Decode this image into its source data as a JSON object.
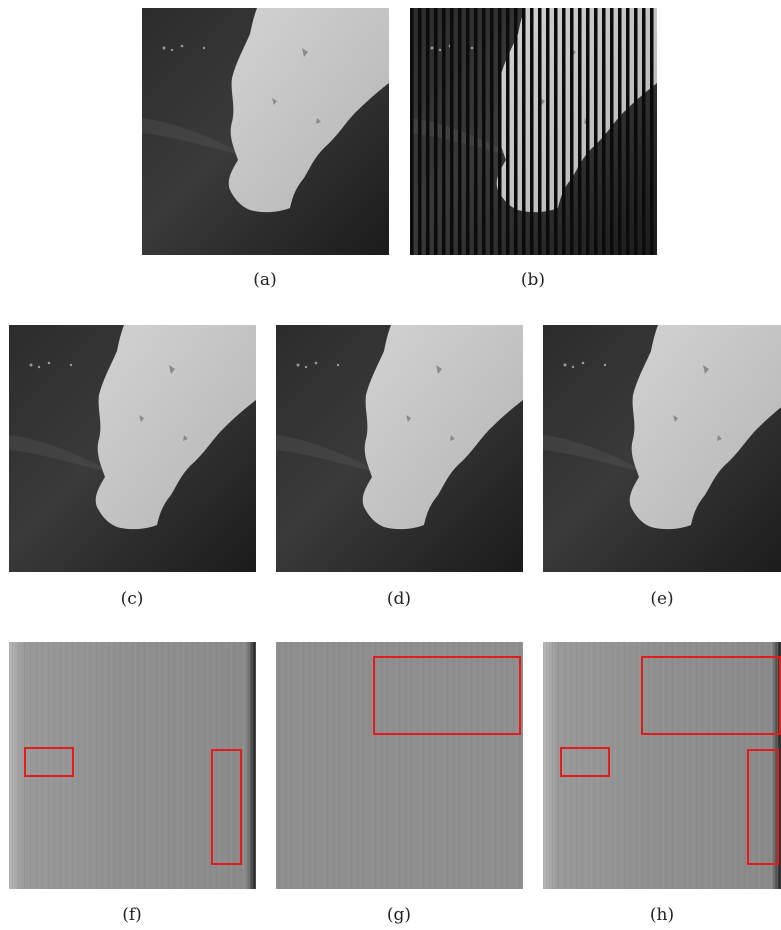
{
  "captions": {
    "a": "(a)",
    "b": "(b)",
    "c": "(c)",
    "d": "(d)",
    "e": "(e)",
    "f": "(f)",
    "g": "(g)",
    "h": "(h)"
  },
  "colors": {
    "land": "#c9c9c9",
    "sea": "#2a2a2a",
    "residual": "#8f8f8f",
    "highlight_box": "#e11c1c"
  }
}
